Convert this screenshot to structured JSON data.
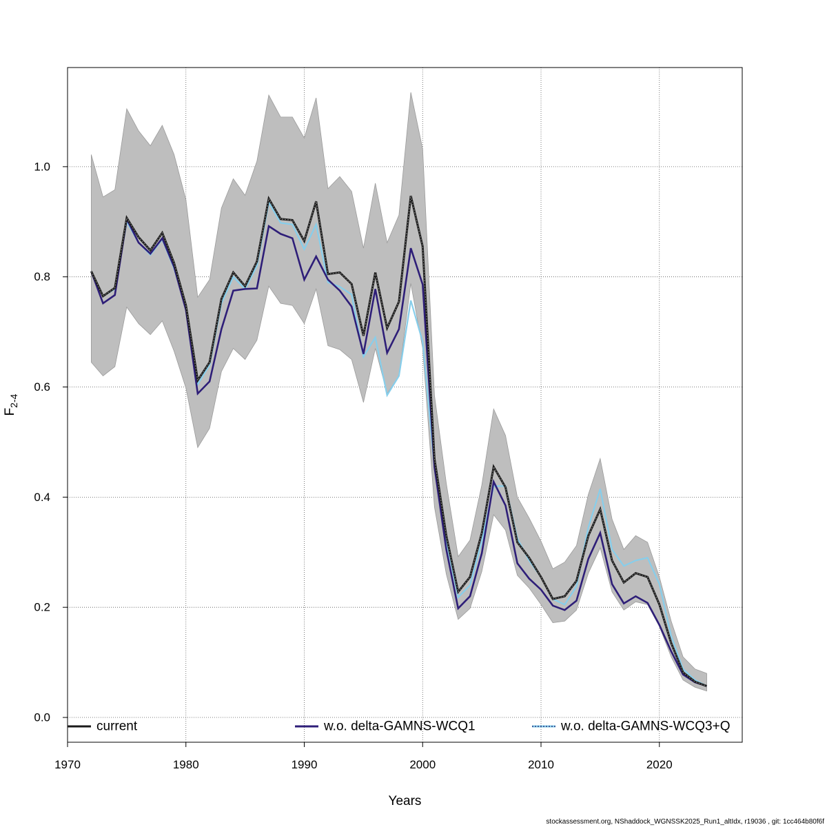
{
  "chart_data": {
    "type": "line",
    "title": "",
    "xlabel": "Years",
    "ylabel": "F",
    "ylabel_subscript": "2-4",
    "xlim": [
      1970,
      2027
    ],
    "ylim": [
      -0.045,
      1.18
    ],
    "x_ticks": [
      1970,
      1980,
      1990,
      2000,
      2010,
      2020
    ],
    "y_ticks": [
      0.0,
      0.2,
      0.4,
      0.6,
      0.8,
      1.0
    ],
    "y_tick_labels": [
      "0.0",
      "0.2",
      "0.4",
      "0.6",
      "0.8",
      "1.0"
    ],
    "grid": true,
    "legend_position": "bottom",
    "x": [
      1972,
      1973,
      1974,
      1975,
      1976,
      1977,
      1978,
      1979,
      1980,
      1981,
      1982,
      1983,
      1984,
      1985,
      1986,
      1987,
      1988,
      1989,
      1990,
      1991,
      1992,
      1993,
      1994,
      1995,
      1996,
      1997,
      1998,
      1999,
      2000,
      2001,
      2002,
      2003,
      2004,
      2005,
      2006,
      2007,
      2008,
      2009,
      2010,
      2011,
      2012,
      2013,
      2014,
      2015,
      2016,
      2017,
      2018,
      2019,
      2020,
      2021,
      2022,
      2023,
      2024
    ],
    "band": {
      "lower": [
        0.645,
        0.62,
        0.637,
        0.745,
        0.715,
        0.695,
        0.72,
        0.665,
        0.598,
        0.49,
        0.525,
        0.628,
        0.67,
        0.65,
        0.685,
        0.783,
        0.752,
        0.748,
        0.715,
        0.778,
        0.675,
        0.668,
        0.65,
        0.572,
        0.67,
        0.588,
        0.62,
        0.788,
        0.67,
        0.382,
        0.26,
        0.178,
        0.198,
        0.265,
        0.368,
        0.34,
        0.258,
        0.235,
        0.205,
        0.172,
        0.175,
        0.195,
        0.262,
        0.308,
        0.228,
        0.195,
        0.21,
        0.205,
        0.165,
        0.11,
        0.068,
        0.055,
        0.048
      ],
      "upper": [
        1.022,
        0.945,
        0.958,
        1.105,
        1.065,
        1.038,
        1.075,
        1.022,
        0.94,
        0.763,
        0.795,
        0.925,
        0.978,
        0.948,
        1.01,
        1.13,
        1.09,
        1.09,
        1.052,
        1.125,
        0.96,
        0.982,
        0.955,
        0.852,
        0.97,
        0.862,
        0.912,
        1.135,
        1.032,
        0.585,
        0.425,
        0.292,
        0.322,
        0.422,
        0.56,
        0.512,
        0.4,
        0.362,
        0.32,
        0.27,
        0.282,
        0.312,
        0.405,
        0.47,
        0.36,
        0.305,
        0.33,
        0.318,
        0.255,
        0.175,
        0.11,
        0.088,
        0.08
      ],
      "color": "#bebebe"
    },
    "series": [
      {
        "name": "current",
        "color": "#1a1a1a",
        "style": "solid",
        "values": [
          0.81,
          0.765,
          0.78,
          0.907,
          0.872,
          0.848,
          0.88,
          0.825,
          0.748,
          0.612,
          0.645,
          0.76,
          0.808,
          0.783,
          0.828,
          0.942,
          0.905,
          0.903,
          0.865,
          0.937,
          0.805,
          0.808,
          0.787,
          0.693,
          0.808,
          0.707,
          0.755,
          0.947,
          0.855,
          0.47,
          0.33,
          0.228,
          0.255,
          0.335,
          0.455,
          0.418,
          0.318,
          0.29,
          0.255,
          0.215,
          0.22,
          0.248,
          0.33,
          0.378,
          0.285,
          0.245,
          0.262,
          0.255,
          0.205,
          0.135,
          0.082,
          0.065,
          0.057
        ]
      },
      {
        "name": "w.o. delta-GAMNS-WCQ1",
        "color": "#2e1e78",
        "style": "solid",
        "values": [
          0.81,
          0.752,
          0.767,
          0.905,
          0.862,
          0.842,
          0.87,
          0.818,
          0.74,
          0.588,
          0.61,
          0.705,
          0.775,
          0.778,
          0.779,
          0.892,
          0.878,
          0.87,
          0.795,
          0.837,
          0.795,
          0.775,
          0.746,
          0.66,
          0.778,
          0.662,
          0.705,
          0.852,
          0.786,
          0.455,
          0.305,
          0.198,
          0.22,
          0.298,
          0.428,
          0.385,
          0.28,
          0.252,
          0.232,
          0.203,
          0.195,
          0.212,
          0.288,
          0.335,
          0.242,
          0.207,
          0.22,
          0.208,
          0.168,
          0.12,
          0.078,
          0.064,
          0.057
        ]
      },
      {
        "name": "w.o. delta-GAMNS-WCQ3+Q",
        "color": "#87ceeb",
        "style": "dotted",
        "values": [
          0.81,
          0.765,
          0.778,
          0.9,
          0.862,
          0.84,
          0.868,
          0.815,
          0.745,
          0.605,
          0.64,
          0.752,
          0.8,
          0.778,
          0.82,
          0.935,
          0.898,
          0.895,
          0.85,
          0.895,
          0.79,
          0.782,
          0.768,
          0.655,
          0.69,
          0.585,
          0.62,
          0.757,
          0.682,
          0.455,
          0.32,
          0.218,
          0.24,
          0.32,
          0.42,
          0.42,
          0.325,
          0.285,
          0.255,
          0.215,
          0.205,
          0.238,
          0.345,
          0.415,
          0.305,
          0.275,
          0.285,
          0.29,
          0.242,
          0.148,
          0.088,
          0.068,
          0.057
        ]
      }
    ]
  },
  "footer_note": "stockassessment.org, NShaddock_WGNSSK2025_Run1_altIdx, r19036 , git: 1cc464b80f6f"
}
